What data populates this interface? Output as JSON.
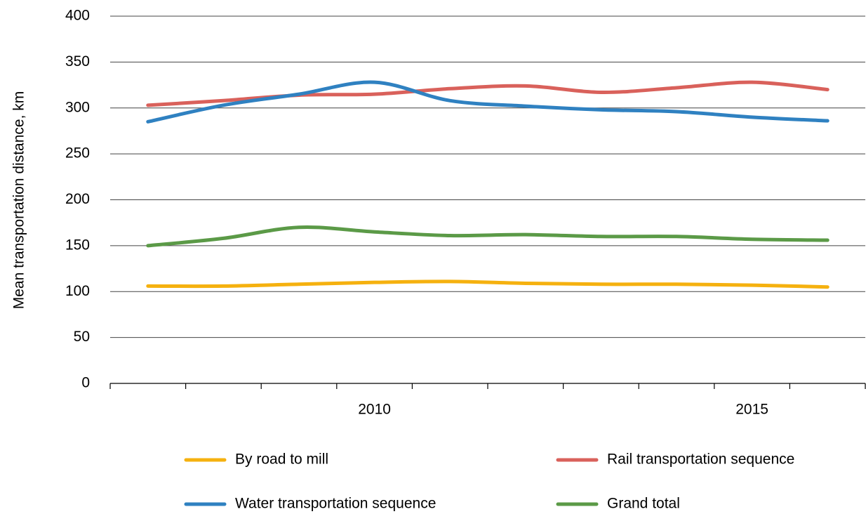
{
  "chart_data": {
    "type": "line",
    "y_label": "Mean transportation distance,  km",
    "categories": [
      null,
      null,
      null,
      "2010",
      null,
      null,
      null,
      null,
      "2015",
      null
    ],
    "series": [
      {
        "name": "By road to mill",
        "color": "#f5b10f",
        "values": [
          106,
          106,
          108,
          110,
          111,
          109,
          108,
          108,
          107,
          105
        ]
      },
      {
        "name": "Rail transportation sequence",
        "color": "#d9615b",
        "values": [
          303,
          308,
          314,
          315,
          321,
          324,
          317,
          322,
          328,
          320
        ]
      },
      {
        "name": "Water transportation sequence",
        "color": "#2f81c1",
        "values": [
          285,
          303,
          315,
          328,
          308,
          302,
          298,
          296,
          290,
          286
        ]
      },
      {
        "name": "Grand total",
        "color": "#5b9a47",
        "values": [
          150,
          158,
          170,
          165,
          161,
          162,
          160,
          160,
          157,
          156
        ]
      }
    ],
    "ylim": [
      0,
      400
    ],
    "yticks": [
      0,
      50,
      100,
      150,
      200,
      250,
      300,
      350,
      400
    ],
    "grid": true
  }
}
